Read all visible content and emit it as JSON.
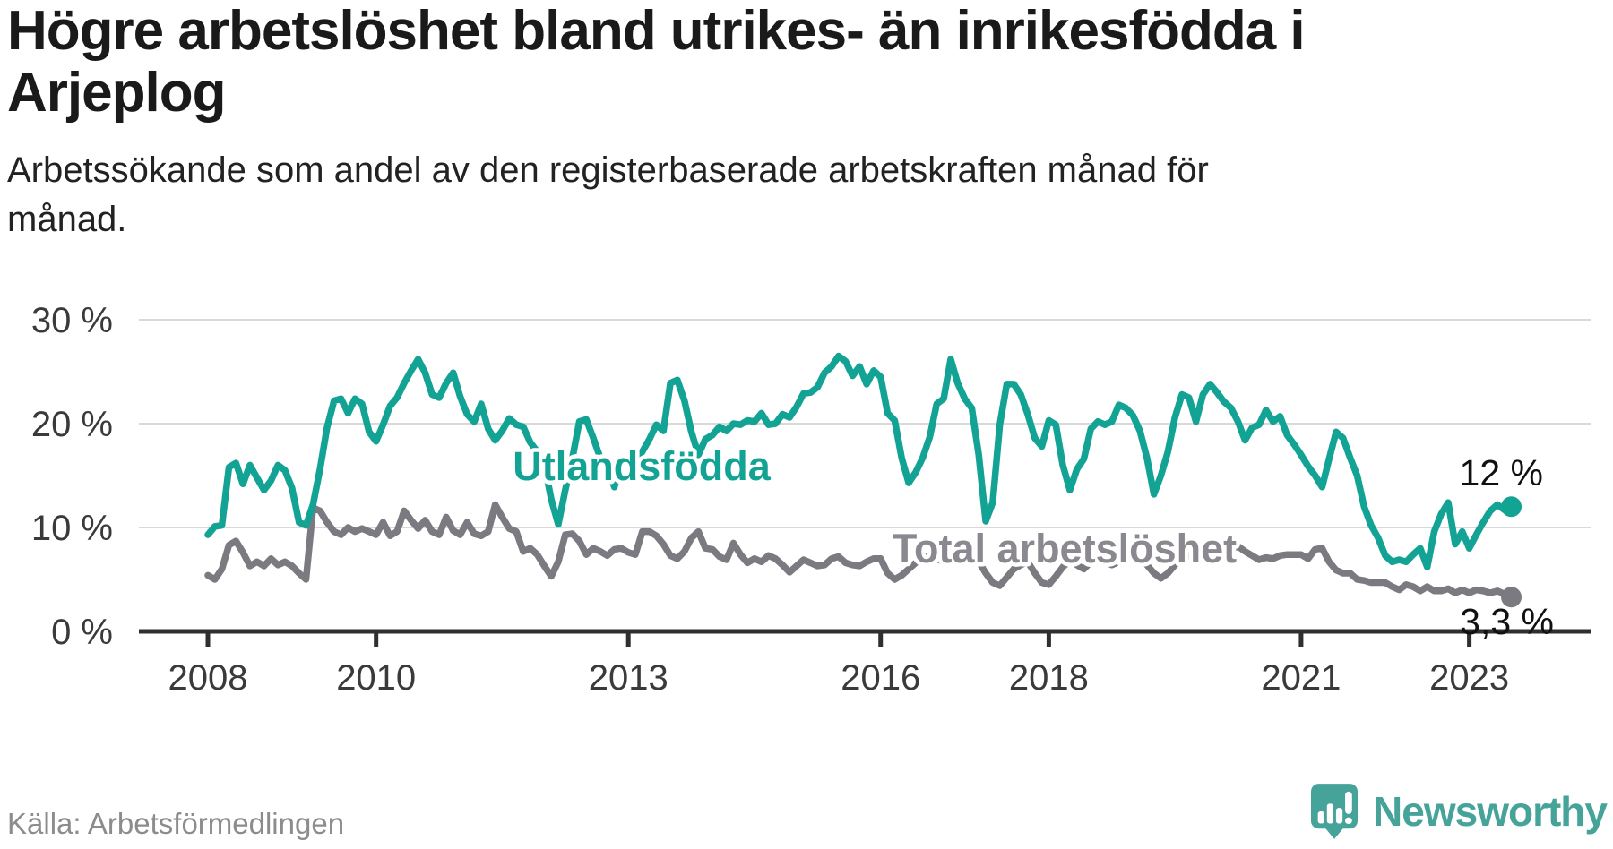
{
  "title": {
    "line1": "Högre arbetslöshet bland utrikes- än inrikesfödda i",
    "line2": "Arjeplog"
  },
  "subtitle": {
    "line1": "Arbetssökande som andel av den registerbaserade arbetskraften månad för",
    "line2": "månad."
  },
  "source": "Källa: Arbetsförmedlingen",
  "logo": {
    "text": "Newsworthy",
    "icon": "newsworthy-speech-bubble-bar-chart-icon",
    "color": "#46a39a"
  },
  "colors": {
    "foreign_born_line": "#13a395",
    "total_line": "#7c7a81",
    "total_label": "#8b898f",
    "gridline": "#d9d9d9",
    "axis": "#2f2f2f",
    "annotation_text": "#111111"
  },
  "chart_data": {
    "type": "line",
    "title": "Högre arbetslöshet bland utrikes- än inrikesfödda i Arjeplog",
    "subtitle": "Arbetssökande som andel av den registerbaserade arbetskraften månad för månad.",
    "x_unit": "month",
    "x_start": "2008-01",
    "x_end": "2023-07",
    "x_ticks": [
      2008,
      2010,
      2013,
      2016,
      2018,
      2021,
      2023
    ],
    "ylim": [
      0,
      30
    ],
    "y_ticks": [
      {
        "value": 0,
        "label": "0 %"
      },
      {
        "value": 10,
        "label": "10 %"
      },
      {
        "value": 20,
        "label": "20 %"
      },
      {
        "value": 30,
        "label": "30 %"
      }
    ],
    "grid": "horizontal-only",
    "legend_position": "inline-labels",
    "series": [
      {
        "name": "Utlandsfödda",
        "color": "#13a395",
        "end_label": "12 %",
        "end_value": 12.0,
        "values": [
          9.3,
          10.1,
          10.2,
          15.8,
          16.2,
          14.2,
          16.0,
          14.8,
          13.6,
          14.5,
          16.0,
          15.5,
          13.8,
          10.5,
          10.2,
          12.2,
          15.6,
          19.6,
          22.2,
          22.4,
          21.0,
          22.4,
          21.9,
          19.2,
          18.3,
          19.9,
          21.7,
          22.5,
          23.9,
          25.1,
          26.2,
          24.9,
          22.8,
          22.5,
          23.9,
          24.9,
          22.6,
          20.9,
          20.2,
          21.9,
          19.5,
          18.4,
          19.3,
          20.5,
          19.9,
          19.7,
          18.2,
          17.3,
          16.1,
          12.7,
          10.3,
          13.6,
          16.6,
          20.2,
          20.4,
          18.6,
          16.7,
          16.0,
          13.9,
          16.6,
          16.7,
          16.3,
          17.3,
          18.5,
          19.9,
          19.3,
          23.9,
          24.2,
          22.2,
          19.2,
          17.0,
          18.5,
          18.9,
          19.7,
          19.3,
          20.0,
          19.9,
          20.3,
          20.2,
          21.0,
          19.9,
          20.0,
          20.9,
          20.6,
          21.6,
          22.9,
          23.0,
          23.5,
          24.9,
          25.5,
          26.5,
          26.0,
          24.6,
          25.5,
          23.8,
          25.1,
          24.5,
          21.0,
          20.3,
          16.7,
          14.3,
          15.3,
          16.7,
          18.7,
          21.9,
          22.4,
          26.2,
          23.9,
          22.4,
          21.5,
          17.0,
          10.6,
          12.4,
          19.9,
          23.8,
          23.8,
          22.8,
          20.9,
          18.6,
          17.8,
          20.3,
          19.9,
          16.0,
          13.6,
          15.6,
          16.6,
          19.5,
          20.2,
          19.9,
          20.2,
          21.8,
          21.5,
          20.8,
          19.3,
          16.7,
          13.2,
          15.0,
          17.3,
          20.6,
          22.8,
          22.5,
          20.2,
          22.8,
          23.8,
          23.0,
          22.1,
          21.5,
          20.2,
          18.4,
          19.6,
          19.9,
          21.3,
          20.2,
          20.7,
          18.9,
          18.0,
          17.0,
          15.9,
          15.0,
          13.9,
          16.6,
          19.2,
          18.6,
          16.7,
          15.0,
          12.0,
          10.2,
          9.0,
          7.3,
          6.7,
          6.9,
          6.7,
          7.4,
          8.0,
          6.2,
          9.6,
          11.3,
          12.4,
          8.4,
          9.6,
          8.0,
          9.3,
          10.5,
          11.6,
          12.2,
          11.7,
          12.0
        ]
      },
      {
        "name": "Total arbetslöshet",
        "color": "#7c7a81",
        "end_label": "3,3 %",
        "end_value": 3.3,
        "values": [
          5.4,
          5.0,
          6.0,
          8.3,
          8.7,
          7.6,
          6.3,
          6.7,
          6.3,
          7.0,
          6.4,
          6.7,
          6.3,
          5.6,
          5.0,
          11.9,
          11.6,
          10.5,
          9.6,
          9.3,
          10.0,
          9.6,
          9.9,
          9.6,
          9.3,
          10.5,
          9.2,
          9.6,
          11.6,
          10.7,
          9.9,
          10.7,
          9.6,
          9.3,
          11.0,
          9.7,
          9.3,
          10.5,
          9.4,
          9.2,
          9.6,
          12.2,
          11.0,
          9.9,
          9.6,
          7.7,
          8.0,
          7.4,
          6.3,
          5.3,
          6.7,
          9.3,
          9.4,
          8.7,
          7.4,
          8.0,
          7.7,
          7.3,
          7.9,
          8.0,
          7.6,
          7.4,
          9.6,
          9.6,
          9.2,
          8.4,
          7.3,
          7.0,
          7.7,
          9.0,
          9.6,
          8.0,
          7.9,
          7.2,
          6.9,
          8.5,
          7.4,
          6.6,
          7.0,
          6.7,
          7.3,
          7.0,
          6.4,
          5.7,
          6.3,
          6.9,
          6.6,
          6.3,
          6.4,
          7.0,
          7.2,
          6.6,
          6.4,
          6.3,
          6.7,
          7.0,
          7.0,
          5.6,
          5.0,
          5.4,
          6.0,
          6.6,
          7.0,
          7.3,
          7.0,
          6.7,
          7.0,
          7.3,
          7.7,
          8.0,
          6.7,
          5.6,
          4.7,
          4.4,
          5.2,
          6.0,
          6.4,
          6.7,
          5.6,
          4.7,
          4.5,
          5.3,
          6.2,
          6.8,
          6.4,
          6.0,
          6.7,
          7.0,
          6.7,
          6.4,
          6.7,
          7.0,
          7.3,
          7.0,
          6.4,
          5.6,
          5.1,
          5.6,
          6.4,
          6.9,
          7.3,
          7.3,
          7.7,
          7.7,
          7.3,
          7.7,
          7.9,
          8.2,
          7.7,
          7.3,
          6.9,
          7.1,
          7.0,
          7.3,
          7.4,
          7.4,
          7.4,
          7.0,
          7.9,
          8.0,
          6.7,
          5.9,
          5.6,
          5.6,
          5.0,
          4.9,
          4.7,
          4.7,
          4.7,
          4.3,
          4.0,
          4.5,
          4.3,
          3.9,
          4.3,
          3.9,
          3.9,
          4.1,
          3.7,
          4.0,
          3.7,
          4.0,
          3.9,
          3.7,
          3.9,
          3.6,
          3.3
        ]
      }
    ]
  }
}
